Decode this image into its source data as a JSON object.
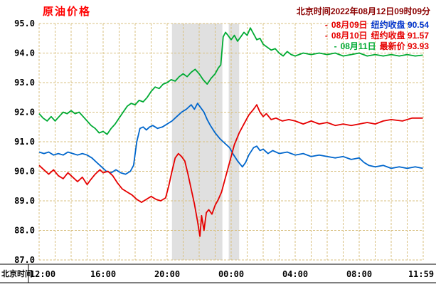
{
  "header": {
    "title": "原油价格",
    "timestamp": "北京时间2022年08月12日09时09分"
  },
  "colors": {
    "title": "#ff0000",
    "timestamp": "#8b0000",
    "grid": "#d8c080",
    "band": "#e0e0e0",
    "axis_line": "#000000",
    "blue_line": "#0066cc",
    "red_line": "#e60000",
    "green_line": "#00aa33"
  },
  "legend": {
    "items": [
      {
        "marker": "-",
        "date": "08月09日",
        "text": "纽约收盘 90.54",
        "marker_color": "#e60000",
        "date_color": "#e60000",
        "text_color": "#0033cc"
      },
      {
        "marker": "-",
        "date": "08月10日",
        "text": "纽约收盘 91.57",
        "marker_color": "#e60000",
        "date_color": "#e60000",
        "text_color": "#e60000"
      },
      {
        "marker": "-",
        "date": "08月11日",
        "text": "最新价 93.93",
        "marker_color": "#00aa33",
        "date_color": "#00aa33",
        "text_color": "#e60000"
      }
    ]
  },
  "axes": {
    "x_caption": "北京时间"
  },
  "chart_data": {
    "type": "line",
    "title": "原油价格",
    "xlabel": "北京时间",
    "ylabel": "",
    "x_unit": "hours from 12:00 Beijing time",
    "xlim": [
      0,
      24
    ],
    "ylim": [
      87.0,
      95.0
    ],
    "grid": {
      "x_step_hours": 1,
      "y_step": 1.0,
      "style": "dashed"
    },
    "x_ticks": [
      {
        "t": 0,
        "label": "12:00"
      },
      {
        "t": 4,
        "label": "16:00"
      },
      {
        "t": 8,
        "label": "20:00"
      },
      {
        "t": 12,
        "label": "00:00"
      },
      {
        "t": 16,
        "label": "04:00"
      },
      {
        "t": 20,
        "label": "08:00"
      },
      {
        "t": 23.98,
        "label": "11:59"
      }
    ],
    "y_ticks": [
      "95.0",
      "94.0",
      "93.0",
      "92.0",
      "91.0",
      "90.0",
      "89.0",
      "88.0",
      "87.0"
    ],
    "shaded_bands": [
      {
        "from": 8.3,
        "to": 11.45
      },
      {
        "from": 11.85,
        "to": 12.5
      }
    ],
    "series": [
      {
        "id": "08-09",
        "name": "08月09日 纽约收盘",
        "close": 90.54,
        "color": "#0066cc",
        "points": [
          [
            0,
            90.65
          ],
          [
            0.3,
            90.6
          ],
          [
            0.6,
            90.65
          ],
          [
            0.9,
            90.55
          ],
          [
            1.2,
            90.6
          ],
          [
            1.5,
            90.55
          ],
          [
            1.8,
            90.65
          ],
          [
            2.1,
            90.6
          ],
          [
            2.4,
            90.55
          ],
          [
            2.7,
            90.6
          ],
          [
            3,
            90.55
          ],
          [
            3.3,
            90.45
          ],
          [
            3.6,
            90.3
          ],
          [
            3.9,
            90.15
          ],
          [
            4.2,
            90.0
          ],
          [
            4.5,
            89.95
          ],
          [
            4.8,
            90.05
          ],
          [
            5.1,
            89.95
          ],
          [
            5.4,
            89.9
          ],
          [
            5.7,
            90.0
          ],
          [
            5.9,
            90.2
          ],
          [
            6.1,
            91.0
          ],
          [
            6.3,
            91.45
          ],
          [
            6.5,
            91.5
          ],
          [
            6.7,
            91.4
          ],
          [
            6.9,
            91.5
          ],
          [
            7.1,
            91.55
          ],
          [
            7.4,
            91.45
          ],
          [
            7.7,
            91.5
          ],
          [
            8,
            91.6
          ],
          [
            8.3,
            91.7
          ],
          [
            8.6,
            91.85
          ],
          [
            8.9,
            92.0
          ],
          [
            9.2,
            92.1
          ],
          [
            9.5,
            92.25
          ],
          [
            9.7,
            92.1
          ],
          [
            9.9,
            92.3
          ],
          [
            10.1,
            92.15
          ],
          [
            10.3,
            92.0
          ],
          [
            10.5,
            91.75
          ],
          [
            10.7,
            91.55
          ],
          [
            11,
            91.3
          ],
          [
            11.3,
            91.1
          ],
          [
            11.6,
            90.95
          ],
          [
            11.9,
            90.8
          ],
          [
            12.1,
            90.6
          ],
          [
            12.4,
            90.35
          ],
          [
            12.7,
            90.15
          ],
          [
            12.9,
            90.3
          ],
          [
            13.1,
            90.55
          ],
          [
            13.4,
            90.8
          ],
          [
            13.6,
            90.85
          ],
          [
            13.8,
            90.7
          ],
          [
            14,
            90.75
          ],
          [
            14.3,
            90.6
          ],
          [
            14.6,
            90.7
          ],
          [
            15,
            90.6
          ],
          [
            15.5,
            90.65
          ],
          [
            16,
            90.55
          ],
          [
            16.5,
            90.6
          ],
          [
            17,
            90.5
          ],
          [
            17.5,
            90.55
          ],
          [
            18,
            90.5
          ],
          [
            18.5,
            90.45
          ],
          [
            19,
            90.5
          ],
          [
            19.5,
            90.4
          ],
          [
            20,
            90.45
          ],
          [
            20.3,
            90.3
          ],
          [
            20.6,
            90.2
          ],
          [
            21,
            90.15
          ],
          [
            21.5,
            90.2
          ],
          [
            22,
            90.1
          ],
          [
            22.5,
            90.15
          ],
          [
            23,
            90.1
          ],
          [
            23.5,
            90.15
          ],
          [
            23.98,
            90.1
          ]
        ]
      },
      {
        "id": "08-10",
        "name": "08月10日 纽约收盘",
        "close": 91.57,
        "color": "#e60000",
        "points": [
          [
            0,
            90.2
          ],
          [
            0.3,
            90.05
          ],
          [
            0.6,
            89.9
          ],
          [
            0.9,
            90.05
          ],
          [
            1.2,
            89.85
          ],
          [
            1.5,
            89.75
          ],
          [
            1.8,
            89.95
          ],
          [
            2.1,
            89.8
          ],
          [
            2.4,
            89.65
          ],
          [
            2.7,
            89.8
          ],
          [
            3,
            89.55
          ],
          [
            3.2,
            89.7
          ],
          [
            3.5,
            89.9
          ],
          [
            3.8,
            90.05
          ],
          [
            4,
            89.95
          ],
          [
            4.3,
            90.0
          ],
          [
            4.6,
            89.85
          ],
          [
            4.9,
            89.6
          ],
          [
            5.2,
            89.4
          ],
          [
            5.5,
            89.3
          ],
          [
            5.8,
            89.2
          ],
          [
            6.1,
            89.05
          ],
          [
            6.4,
            88.95
          ],
          [
            6.7,
            89.05
          ],
          [
            7,
            89.15
          ],
          [
            7.3,
            89.05
          ],
          [
            7.6,
            89.0
          ],
          [
            7.9,
            89.1
          ],
          [
            8.1,
            89.5
          ],
          [
            8.3,
            90.0
          ],
          [
            8.5,
            90.45
          ],
          [
            8.7,
            90.6
          ],
          [
            8.9,
            90.5
          ],
          [
            9.1,
            90.35
          ],
          [
            9.3,
            89.9
          ],
          [
            9.5,
            89.4
          ],
          [
            9.7,
            88.9
          ],
          [
            9.9,
            88.3
          ],
          [
            10.05,
            87.8
          ],
          [
            10.15,
            88.5
          ],
          [
            10.3,
            88.0
          ],
          [
            10.45,
            88.6
          ],
          [
            10.6,
            88.7
          ],
          [
            10.8,
            88.55
          ],
          [
            11,
            88.85
          ],
          [
            11.2,
            89.05
          ],
          [
            11.4,
            89.3
          ],
          [
            11.6,
            89.7
          ],
          [
            11.8,
            90.1
          ],
          [
            12,
            90.5
          ],
          [
            12.2,
            90.9
          ],
          [
            12.5,
            91.3
          ],
          [
            12.8,
            91.6
          ],
          [
            13.1,
            91.9
          ],
          [
            13.4,
            92.1
          ],
          [
            13.6,
            92.25
          ],
          [
            13.8,
            92.0
          ],
          [
            14,
            91.85
          ],
          [
            14.2,
            91.95
          ],
          [
            14.5,
            91.75
          ],
          [
            14.8,
            91.8
          ],
          [
            15.2,
            91.7
          ],
          [
            15.6,
            91.75
          ],
          [
            16,
            91.7
          ],
          [
            16.5,
            91.6
          ],
          [
            17,
            91.7
          ],
          [
            17.5,
            91.6
          ],
          [
            18,
            91.65
          ],
          [
            18.5,
            91.55
          ],
          [
            19,
            91.6
          ],
          [
            19.5,
            91.55
          ],
          [
            20,
            91.6
          ],
          [
            20.5,
            91.65
          ],
          [
            21,
            91.6
          ],
          [
            21.5,
            91.7
          ],
          [
            22,
            91.75
          ],
          [
            22.7,
            91.7
          ],
          [
            23.3,
            91.8
          ],
          [
            23.98,
            91.8
          ]
        ]
      },
      {
        "id": "08-11",
        "name": "08月11日 最新价",
        "latest": 93.93,
        "color": "#00aa33",
        "points": [
          [
            0,
            91.95
          ],
          [
            0.25,
            91.8
          ],
          [
            0.5,
            91.7
          ],
          [
            0.75,
            91.85
          ],
          [
            1,
            91.7
          ],
          [
            1.25,
            91.85
          ],
          [
            1.5,
            92.0
          ],
          [
            1.75,
            91.95
          ],
          [
            2,
            92.05
          ],
          [
            2.25,
            91.95
          ],
          [
            2.5,
            92.0
          ],
          [
            2.75,
            91.85
          ],
          [
            3,
            91.7
          ],
          [
            3.25,
            91.55
          ],
          [
            3.5,
            91.45
          ],
          [
            3.75,
            91.3
          ],
          [
            4,
            91.35
          ],
          [
            4.25,
            91.25
          ],
          [
            4.5,
            91.45
          ],
          [
            4.75,
            91.6
          ],
          [
            5,
            91.8
          ],
          [
            5.25,
            92.0
          ],
          [
            5.5,
            92.2
          ],
          [
            5.75,
            92.3
          ],
          [
            6,
            92.25
          ],
          [
            6.25,
            92.4
          ],
          [
            6.5,
            92.35
          ],
          [
            6.75,
            92.5
          ],
          [
            7,
            92.7
          ],
          [
            7.25,
            92.85
          ],
          [
            7.5,
            92.8
          ],
          [
            7.75,
            92.95
          ],
          [
            8,
            93.0
          ],
          [
            8.25,
            93.1
          ],
          [
            8.5,
            93.05
          ],
          [
            8.75,
            93.2
          ],
          [
            9,
            93.3
          ],
          [
            9.25,
            93.2
          ],
          [
            9.5,
            93.35
          ],
          [
            9.75,
            93.45
          ],
          [
            10,
            93.3
          ],
          [
            10.25,
            93.1
          ],
          [
            10.5,
            92.95
          ],
          [
            10.75,
            93.15
          ],
          [
            11,
            93.3
          ],
          [
            11.2,
            93.5
          ],
          [
            11.35,
            93.6
          ],
          [
            11.5,
            94.55
          ],
          [
            11.65,
            94.7
          ],
          [
            11.8,
            94.6
          ],
          [
            12,
            94.45
          ],
          [
            12.2,
            94.6
          ],
          [
            12.4,
            94.4
          ],
          [
            12.6,
            94.55
          ],
          [
            12.8,
            94.7
          ],
          [
            13,
            94.6
          ],
          [
            13.2,
            94.85
          ],
          [
            13.4,
            94.65
          ],
          [
            13.6,
            94.45
          ],
          [
            13.8,
            94.5
          ],
          [
            14,
            94.3
          ],
          [
            14.25,
            94.2
          ],
          [
            14.5,
            94.1
          ],
          [
            14.75,
            94.15
          ],
          [
            15,
            94.0
          ],
          [
            15.25,
            93.9
          ],
          [
            15.5,
            94.05
          ],
          [
            15.75,
            93.95
          ],
          [
            16,
            93.9
          ],
          [
            16.5,
            94.0
          ],
          [
            17,
            93.95
          ],
          [
            17.5,
            94.0
          ],
          [
            18,
            93.95
          ],
          [
            18.5,
            94.0
          ],
          [
            19,
            93.9
          ],
          [
            19.5,
            93.95
          ],
          [
            20,
            94.0
          ],
          [
            20.5,
            93.9
          ],
          [
            21,
            93.95
          ],
          [
            21.5,
            93.9
          ],
          [
            22,
            93.95
          ],
          [
            22.5,
            93.9
          ],
          [
            23,
            93.95
          ],
          [
            23.5,
            93.9
          ],
          [
            23.98,
            93.93
          ]
        ]
      }
    ]
  }
}
